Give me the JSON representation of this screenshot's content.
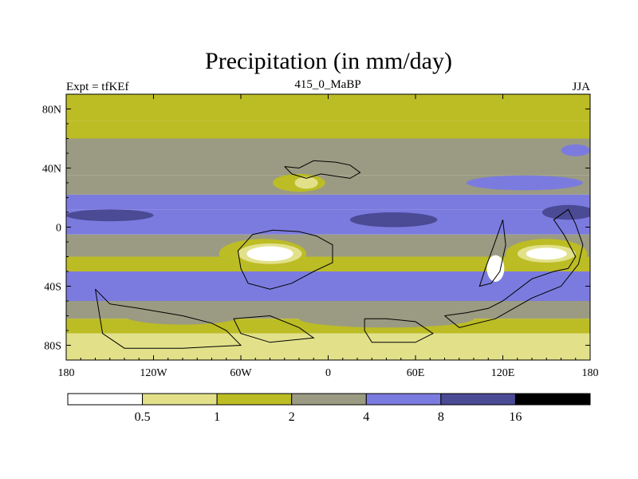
{
  "chart_data": {
    "type": "heatmap",
    "title": "Precipitation (in mm/day)",
    "subtitle_left": "Expt = tfKEf",
    "subtitle_center": "415_0_MaBP",
    "subtitle_right": "JJA",
    "x_range": [
      -180,
      180
    ],
    "y_range": [
      -90,
      90
    ],
    "x_ticks": [
      {
        "value": -180,
        "label": "180"
      },
      {
        "value": -120,
        "label": "120W"
      },
      {
        "value": -60,
        "label": "60W"
      },
      {
        "value": 0,
        "label": "0"
      },
      {
        "value": 60,
        "label": "60E"
      },
      {
        "value": 120,
        "label": "120E"
      },
      {
        "value": 180,
        "label": "180"
      }
    ],
    "y_ticks": [
      {
        "value": 80,
        "label": "80N"
      },
      {
        "value": 40,
        "label": "40N"
      },
      {
        "value": 0,
        "label": "0"
      },
      {
        "value": -40,
        "label": "40S"
      },
      {
        "value": -80,
        "label": "80S"
      }
    ],
    "legend": {
      "placement": "bottom",
      "levels": [
        "0.5",
        "1",
        "2",
        "4",
        "8",
        "16"
      ],
      "colors": [
        "#ffffff",
        "#e2e18a",
        "#bcbc25",
        "#9b9b83",
        "#7b7bdf",
        "#4a4a95",
        "#000000"
      ]
    },
    "zonal_bands": [
      {
        "lat": [
          72,
          90
        ],
        "class": 2
      },
      {
        "lat": [
          60,
          72
        ],
        "class": 2
      },
      {
        "lat": [
          35,
          60
        ],
        "class": 3
      },
      {
        "lat": [
          22,
          35
        ],
        "class": 3
      },
      {
        "lat": [
          12,
          22
        ],
        "class": 4
      },
      {
        "lat": [
          -5,
          12
        ],
        "class": 4
      },
      {
        "lat": [
          -20,
          -5
        ],
        "class": 3
      },
      {
        "lat": [
          -30,
          -20
        ],
        "class": 2
      },
      {
        "lat": [
          -50,
          -30
        ],
        "class": 4
      },
      {
        "lat": [
          -62,
          -50
        ],
        "class": 3
      },
      {
        "lat": [
          -72,
          -62
        ],
        "class": 2
      },
      {
        "lat": [
          -90,
          -72
        ],
        "class": 1
      }
    ],
    "anomalies": [
      {
        "lon": -150,
        "lat": 8,
        "rx": 30,
        "ry": 4,
        "class": 5
      },
      {
        "lon": 45,
        "lat": 5,
        "rx": 30,
        "ry": 5,
        "class": 5
      },
      {
        "lon": 165,
        "lat": 10,
        "rx": 18,
        "ry": 5,
        "class": 5
      },
      {
        "lon": 135,
        "lat": 30,
        "rx": 40,
        "ry": 5,
        "class": 4
      },
      {
        "lon": -20,
        "lat": 30,
        "rx": 18,
        "ry": 6,
        "class": 2
      },
      {
        "lon": -15,
        "lat": 30,
        "rx": 8,
        "ry": 4,
        "class": 1
      },
      {
        "lon": -45,
        "lat": -18,
        "rx": 30,
        "ry": 10,
        "class": 2
      },
      {
        "lon": -40,
        "lat": -18,
        "rx": 22,
        "ry": 7,
        "class": 1
      },
      {
        "lon": -40,
        "lat": -18,
        "rx": 16,
        "ry": 5,
        "class": 0
      },
      {
        "lon": 150,
        "lat": -18,
        "rx": 28,
        "ry": 10,
        "class": 2
      },
      {
        "lon": 150,
        "lat": -18,
        "rx": 20,
        "ry": 6,
        "class": 1
      },
      {
        "lon": 150,
        "lat": -18,
        "rx": 14,
        "ry": 4,
        "class": 0
      },
      {
        "lon": 115,
        "lat": -28,
        "rx": 6,
        "ry": 9,
        "class": 0
      },
      {
        "lon": -100,
        "lat": -60,
        "rx": 40,
        "ry": 6,
        "class": 3
      },
      {
        "lon": 40,
        "lat": -62,
        "rx": 60,
        "ry": 6,
        "class": 3
      },
      {
        "lon": 170,
        "lat": 52,
        "rx": 10,
        "ry": 4,
        "class": 4
      }
    ],
    "continent_outlines": [
      [
        [
          -30,
          41
        ],
        [
          -20,
          40
        ],
        [
          -10,
          45
        ],
        [
          5,
          44
        ],
        [
          15,
          42
        ],
        [
          22,
          37
        ],
        [
          15,
          33
        ],
        [
          -5,
          36
        ],
        [
          -15,
          33
        ],
        [
          -25,
          36
        ],
        [
          -30,
          41
        ]
      ],
      [
        [
          -52,
          -5
        ],
        [
          -38,
          -2
        ],
        [
          -20,
          -3
        ],
        [
          -8,
          -6
        ],
        [
          3,
          -12
        ],
        [
          3,
          -24
        ],
        [
          -10,
          -30
        ],
        [
          -25,
          -38
        ],
        [
          -40,
          -42
        ],
        [
          -55,
          -38
        ],
        [
          -60,
          -28
        ],
        [
          -62,
          -16
        ],
        [
          -52,
          -5
        ]
      ],
      [
        [
          -160,
          -42
        ],
        [
          -150,
          -52
        ],
        [
          -130,
          -55
        ],
        [
          -100,
          -60
        ],
        [
          -80,
          -65
        ],
        [
          -70,
          -70
        ],
        [
          -60,
          -80
        ],
        [
          -100,
          -82
        ],
        [
          -140,
          -82
        ],
        [
          -155,
          -72
        ],
        [
          -160,
          -42
        ]
      ],
      [
        [
          -65,
          -62
        ],
        [
          -40,
          -60
        ],
        [
          -20,
          -68
        ],
        [
          -10,
          -75
        ],
        [
          -40,
          -78
        ],
        [
          -60,
          -72
        ],
        [
          -65,
          -62
        ]
      ],
      [
        [
          80,
          -60
        ],
        [
          95,
          -58
        ],
        [
          110,
          -55
        ],
        [
          120,
          -50
        ],
        [
          140,
          -35
        ],
        [
          155,
          -30
        ],
        [
          165,
          -28
        ],
        [
          170,
          -20
        ],
        [
          162,
          -5
        ],
        [
          155,
          5
        ],
        [
          165,
          12
        ],
        [
          170,
          2
        ],
        [
          175,
          -12
        ],
        [
          172,
          -25
        ],
        [
          160,
          -40
        ],
        [
          140,
          -48
        ],
        [
          115,
          -62
        ],
        [
          90,
          -68
        ],
        [
          80,
          -60
        ]
      ],
      [
        [
          120,
          5
        ],
        [
          122,
          -12
        ],
        [
          118,
          -30
        ],
        [
          112,
          -38
        ],
        [
          104,
          -40
        ],
        [
          108,
          -28
        ],
        [
          114,
          -12
        ],
        [
          120,
          5
        ]
      ],
      [
        [
          25,
          -62
        ],
        [
          40,
          -62
        ],
        [
          60,
          -64
        ],
        [
          72,
          -72
        ],
        [
          60,
          -78
        ],
        [
          30,
          -78
        ],
        [
          25,
          -70
        ],
        [
          25,
          -62
        ]
      ]
    ]
  }
}
